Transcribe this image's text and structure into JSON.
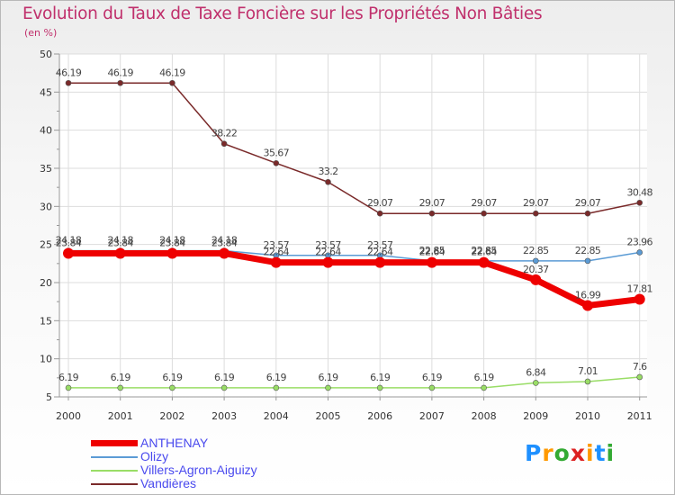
{
  "chart_data": {
    "type": "line",
    "title": "Evolution du Taux de Taxe Foncière sur les Propriétés Non Bâties",
    "unit_label": "(en %)",
    "categories": [
      "2000",
      "2001",
      "2002",
      "2003",
      "2004",
      "2005",
      "2006",
      "2007",
      "2008",
      "2009",
      "2010",
      "2011"
    ],
    "ylim": [
      5,
      50
    ],
    "yticks": [
      5,
      10,
      15,
      20,
      25,
      30,
      35,
      40,
      45,
      50
    ],
    "grid": true,
    "legend_position": "bottom-left",
    "series": [
      {
        "name": "ANTHENAY",
        "color": "#ee0000",
        "values": [
          23.84,
          23.84,
          23.84,
          23.84,
          22.64,
          22.64,
          22.64,
          22.64,
          22.64,
          20.37,
          16.99,
          17.81
        ]
      },
      {
        "name": "Olizy",
        "color": "#5b9bd5",
        "values": [
          24.18,
          24.18,
          24.18,
          24.18,
          23.57,
          23.57,
          23.57,
          22.85,
          22.85,
          22.85,
          22.85,
          23.96
        ]
      },
      {
        "name": "Villers-Agron-Aiguizy",
        "color": "#99dd66",
        "values": [
          6.19,
          6.19,
          6.19,
          6.19,
          6.19,
          6.19,
          6.19,
          6.19,
          6.19,
          6.84,
          7.01,
          7.6
        ]
      },
      {
        "name": "Vandières",
        "color": "#7a2a2a",
        "values": [
          46.19,
          46.19,
          46.19,
          38.22,
          35.67,
          33.2,
          29.07,
          29.07,
          29.07,
          29.07,
          29.07,
          30.48
        ]
      }
    ],
    "data_labels": [
      {
        "series": 3,
        "labels": [
          "46.19",
          "46.19",
          "46.19",
          "38.22",
          "35.67",
          "33.2",
          "29.07",
          "29.07",
          "29.07",
          "29.07",
          "29.07",
          "30.48"
        ]
      },
      {
        "series": 1,
        "labels": [
          "24.18",
          "24.18",
          "24.18",
          "24.18",
          "23.57",
          "23.57",
          "23.57",
          "22.85",
          "22.85",
          "22.85",
          "22.85",
          "23.96"
        ]
      },
      {
        "series": 0,
        "labels": [
          "23.84",
          "23.84",
          "23.84",
          "23.84",
          "22.64",
          "22.64",
          "22.64",
          "22.64",
          "22.64",
          "20.37",
          "16.99",
          "17.81"
        ]
      },
      {
        "series": 2,
        "labels": [
          "6.19",
          "6.19",
          "6.19",
          "6.19",
          "6.19",
          "6.19",
          "6.19",
          "6.19",
          "6.19",
          "6.84",
          "7.01",
          "7.6"
        ]
      }
    ]
  },
  "logo": {
    "letters": [
      "P",
      "r",
      "o",
      "x",
      "i",
      "t",
      "i"
    ],
    "colors": [
      "#1e90ff",
      "#ff9900",
      "#33aa33",
      "#dd2222",
      "#ff9900",
      "#1e90ff",
      "#33aa33"
    ]
  }
}
